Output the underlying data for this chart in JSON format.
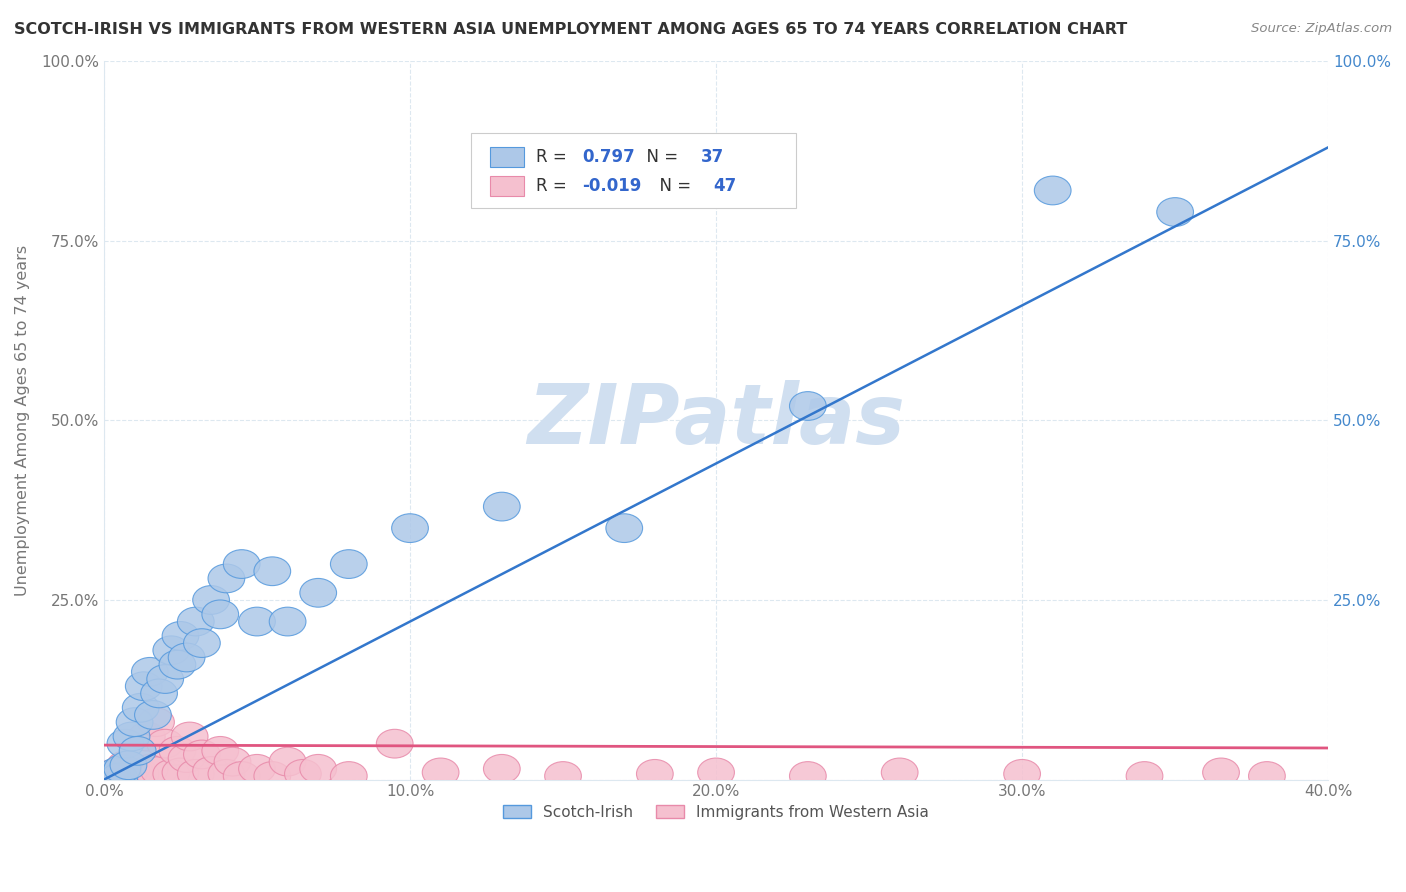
{
  "title": "SCOTCH-IRISH VS IMMIGRANTS FROM WESTERN ASIA UNEMPLOYMENT AMONG AGES 65 TO 74 YEARS CORRELATION CHART",
  "source": "Source: ZipAtlas.com",
  "ylabel": "Unemployment Among Ages 65 to 74 years",
  "xlim": [
    0.0,
    0.4
  ],
  "ylim": [
    0.0,
    1.0
  ],
  "xticks": [
    0.0,
    0.1,
    0.2,
    0.3,
    0.4
  ],
  "xticklabels": [
    "0.0%",
    "10.0%",
    "20.0%",
    "30.0%",
    "40.0%"
  ],
  "yticks": [
    0.0,
    0.25,
    0.5,
    0.75,
    1.0
  ],
  "ytick_left_labels": [
    "",
    "25.0%",
    "50.0%",
    "75.0%",
    "100.0%"
  ],
  "ytick_right_labels": [
    "",
    "25.0%",
    "50.0%",
    "75.0%",
    "100.0%"
  ],
  "series1_name": "Scotch-Irish",
  "series1_R": "0.797",
  "series1_N": "37",
  "series1_color": "#adc8e8",
  "series1_edge_color": "#5599dd",
  "series1_line_color": "#3377cc",
  "series2_name": "Immigrants from Western Asia",
  "series2_R": "-0.019",
  "series2_N": "47",
  "series2_color": "#f5c0cf",
  "series2_edge_color": "#e88aaa",
  "series2_line_color": "#e05580",
  "watermark_text": "ZIPatlas",
  "watermark_color": "#d0dff0",
  "background_color": "#ffffff",
  "grid_color": "#dde8f0",
  "title_color": "#333333",
  "source_color": "#888888",
  "axis_label_color": "#777777",
  "right_tick_color": "#4488cc",
  "legend_R_N_color": "#3366cc",
  "legend_border_color": "#cccccc",
  "series1_x": [
    0.002,
    0.003,
    0.004,
    0.005,
    0.006,
    0.007,
    0.008,
    0.009,
    0.01,
    0.011,
    0.012,
    0.013,
    0.015,
    0.016,
    0.018,
    0.02,
    0.022,
    0.024,
    0.025,
    0.027,
    0.03,
    0.032,
    0.035,
    0.038,
    0.04,
    0.045,
    0.05,
    0.055,
    0.06,
    0.07,
    0.08,
    0.1,
    0.13,
    0.17,
    0.23,
    0.31,
    0.35
  ],
  "series1_y": [
    0.005,
    0.002,
    0.01,
    0.003,
    0.015,
    0.05,
    0.02,
    0.06,
    0.08,
    0.04,
    0.1,
    0.13,
    0.15,
    0.09,
    0.12,
    0.14,
    0.18,
    0.16,
    0.2,
    0.17,
    0.22,
    0.19,
    0.25,
    0.23,
    0.28,
    0.3,
    0.22,
    0.29,
    0.22,
    0.26,
    0.3,
    0.35,
    0.38,
    0.35,
    0.52,
    0.82,
    0.79
  ],
  "series2_x": [
    0.001,
    0.002,
    0.003,
    0.004,
    0.005,
    0.006,
    0.007,
    0.008,
    0.009,
    0.01,
    0.011,
    0.012,
    0.014,
    0.015,
    0.017,
    0.018,
    0.02,
    0.022,
    0.024,
    0.025,
    0.027,
    0.028,
    0.03,
    0.032,
    0.035,
    0.038,
    0.04,
    0.042,
    0.045,
    0.05,
    0.055,
    0.06,
    0.065,
    0.07,
    0.08,
    0.095,
    0.11,
    0.13,
    0.15,
    0.18,
    0.2,
    0.23,
    0.26,
    0.3,
    0.34,
    0.365,
    0.38
  ],
  "series2_y": [
    0.005,
    0.003,
    0.008,
    0.004,
    0.01,
    0.005,
    0.02,
    0.008,
    0.015,
    0.012,
    0.04,
    0.008,
    0.06,
    0.015,
    0.08,
    0.012,
    0.05,
    0.008,
    0.04,
    0.01,
    0.03,
    0.06,
    0.008,
    0.035,
    0.012,
    0.04,
    0.008,
    0.025,
    0.005,
    0.015,
    0.005,
    0.025,
    0.008,
    0.015,
    0.005,
    0.05,
    0.01,
    0.015,
    0.005,
    0.008,
    0.01,
    0.005,
    0.01,
    0.008,
    0.005,
    0.01,
    0.005
  ],
  "series1_trendline_x": [
    0.0,
    0.4
  ],
  "series1_trendline_y": [
    0.0,
    0.88
  ],
  "series2_trendline_x": [
    0.0,
    0.4
  ],
  "series2_trendline_y": [
    0.048,
    0.044
  ]
}
